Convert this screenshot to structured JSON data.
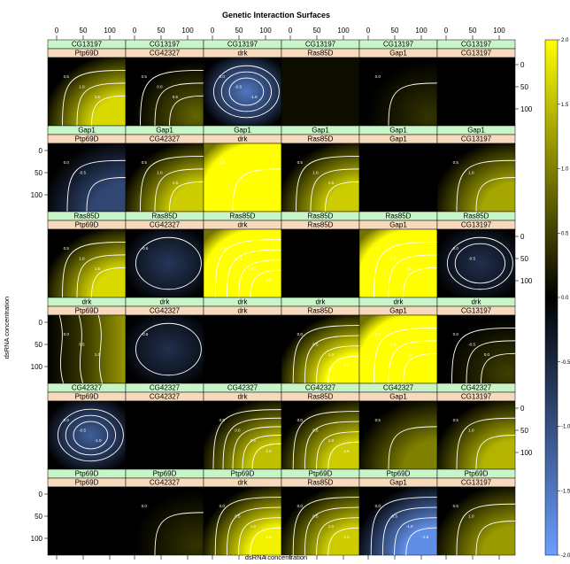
{
  "chart_data": {
    "type": "heatmap",
    "title": "Genetic Interaction Surfaces",
    "xlabel": "dsRNA concentration",
    "ylabel": "dsRNA concentration",
    "x_ticks": [
      "0",
      "50",
      "100"
    ],
    "y_ticks": [
      "0",
      "50",
      "100"
    ],
    "colorbar": {
      "ticks": [
        "2.0",
        "1.5",
        "1.0",
        "0.5",
        "0.0",
        "-0.5",
        "-1.0",
        "-1.5",
        "-2.0"
      ],
      "range": [
        -2.0,
        2.0
      ],
      "low_color": "#6b9eff",
      "mid_color": "#000000",
      "high_color": "#ffff00"
    },
    "rows": [
      {
        "gene": "CG13197",
        "panels": [
          {
            "top": "CG13197",
            "bottom": "Ptp69D",
            "pattern": "bottomRight",
            "strength": 1.7,
            "labels": [
              "0.5",
              "1.0",
              "1.5"
            ]
          },
          {
            "top": "CG13197",
            "bottom": "CG42327",
            "pattern": "mixedTopLeftNeg",
            "strength": 0.8,
            "labels": [
              "0.5",
              "0.0",
              "0.5"
            ]
          },
          {
            "top": "CG13197",
            "bottom": "drk",
            "pattern": "negBlob",
            "strength": -1.5,
            "labels": [
              "0.0",
              "-0.5",
              "-1.0"
            ]
          },
          {
            "top": "CG13197",
            "bottom": "Ras85D",
            "pattern": "flat",
            "strength": 0.1,
            "labels": []
          },
          {
            "top": "CG13197",
            "bottom": "Gap1",
            "pattern": "faintRight",
            "strength": 0.4,
            "labels": [
              "0.0"
            ]
          },
          {
            "top": "CG13197",
            "bottom": "CG13197",
            "pattern": "flat",
            "strength": 0.0,
            "labels": []
          }
        ]
      },
      {
        "gene": "Gap1",
        "panels": [
          {
            "top": "Gap1",
            "bottom": "Ptp69D",
            "pattern": "negBottomRight",
            "strength": -0.9,
            "labels": [
              "0.0",
              "-0.5"
            ]
          },
          {
            "top": "Gap1",
            "bottom": "CG42327",
            "pattern": "bottomRight",
            "strength": 1.6,
            "labels": [
              "0.5",
              "1.0",
              "1.5"
            ]
          },
          {
            "top": "Gap1",
            "bottom": "drk",
            "pattern": "full",
            "strength": 2.0,
            "labels": [
              "1.5"
            ]
          },
          {
            "top": "Gap1",
            "bottom": "Ras85D",
            "pattern": "bottomRight",
            "strength": 1.6,
            "labels": [
              "0.5",
              "1.0",
              "1.5"
            ]
          },
          {
            "top": "Gap1",
            "bottom": "Gap1",
            "pattern": "flat",
            "strength": 0.0,
            "labels": []
          },
          {
            "top": "Gap1",
            "bottom": "CG13197",
            "pattern": "bottomRight",
            "strength": 1.3,
            "labels": [
              "0.5",
              "1.0"
            ]
          }
        ]
      },
      {
        "gene": "Ras85D",
        "panels": [
          {
            "top": "Ras85D",
            "bottom": "Ptp69D",
            "pattern": "bottomRight",
            "strength": 1.7,
            "labels": [
              "0.5",
              "1.0",
              "1.5"
            ]
          },
          {
            "top": "Ras85D",
            "bottom": "CG42327",
            "pattern": "negCenter",
            "strength": -0.7,
            "labels": [
              "-0.5"
            ]
          },
          {
            "top": "Ras85D",
            "bottom": "drk",
            "pattern": "full",
            "strength": 2.0,
            "labels": [
              "-1.5",
              "-0.5",
              "0.5",
              "1.5"
            ]
          },
          {
            "top": "Ras85D",
            "bottom": "Ras85D",
            "pattern": "flat",
            "strength": 0.0,
            "labels": []
          },
          {
            "top": "Ras85D",
            "bottom": "Gap1",
            "pattern": "full",
            "strength": 2.0,
            "labels": [
              "0.5",
              "1.0",
              "1.5"
            ]
          },
          {
            "top": "Ras85D",
            "bottom": "CG13197",
            "pattern": "negCenter",
            "strength": -0.6,
            "labels": [
              "0.0",
              "-0.5"
            ]
          }
        ]
      },
      {
        "gene": "drk",
        "panels": [
          {
            "top": "drk",
            "bottom": "Ptp69D",
            "pattern": "rightBand",
            "strength": 1.2,
            "labels": [
              "0.0",
              "0.5",
              "1.0"
            ]
          },
          {
            "top": "drk",
            "bottom": "CG42327",
            "pattern": "negCenter",
            "strength": -0.6,
            "labels": [
              "-0.5"
            ]
          },
          {
            "top": "drk",
            "bottom": "drk",
            "pattern": "flat",
            "strength": 0.0,
            "labels": []
          },
          {
            "top": "drk",
            "bottom": "Ras85D",
            "pattern": "bottomRight",
            "strength": 2.0,
            "labels": [
              "0.0",
              "0.5",
              "1.0",
              "1.5"
            ]
          },
          {
            "top": "drk",
            "bottom": "Gap1",
            "pattern": "full",
            "strength": 2.0,
            "labels": [
              "0.5",
              "1.0",
              "1.5"
            ]
          },
          {
            "top": "drk",
            "bottom": "CG13197",
            "pattern": "faintRight",
            "strength": 0.5,
            "labels": [
              "0.0",
              "-0.5",
              "0.0"
            ]
          }
        ]
      },
      {
        "gene": "CG42327",
        "panels": [
          {
            "top": "CG42327",
            "bottom": "Ptp69D",
            "pattern": "negCenter",
            "strength": -1.2,
            "labels": [
              "0.0",
              "-0.5",
              "-1.0"
            ]
          },
          {
            "top": "CG42327",
            "bottom": "CG42327",
            "pattern": "flat",
            "strength": 0.0,
            "labels": []
          },
          {
            "top": "CG42327",
            "bottom": "drk",
            "pattern": "bottomRight",
            "strength": 1.5,
            "labels": [
              "0.5",
              "0.0",
              "0.5",
              "1.0",
              "1.5"
            ]
          },
          {
            "top": "CG42327",
            "bottom": "Ras85D",
            "pattern": "bottomRight",
            "strength": 1.6,
            "labels": [
              "0.0",
              "0.5",
              "1.0",
              "1.5"
            ]
          },
          {
            "top": "CG42327",
            "bottom": "Gap1",
            "pattern": "bottomRight",
            "strength": 1.0,
            "labels": [
              "0.5"
            ]
          },
          {
            "top": "CG42327",
            "bottom": "CG13197",
            "pattern": "bottomRight",
            "strength": 1.4,
            "labels": [
              "0.5",
              "1.0"
            ]
          }
        ]
      },
      {
        "gene": "Ptp69D",
        "panels": [
          {
            "top": "Ptp69D",
            "bottom": "Ptp69D",
            "pattern": "flat",
            "strength": 0.0,
            "labels": []
          },
          {
            "top": "Ptp69D",
            "bottom": "CG42327",
            "pattern": "faintRight",
            "strength": 0.4,
            "labels": [
              "0.0"
            ]
          },
          {
            "top": "Ptp69D",
            "bottom": "drk",
            "pattern": "bottomRight",
            "strength": 1.9,
            "labels": [
              "0.0",
              "0.5",
              "1.0",
              "1.5"
            ]
          },
          {
            "top": "Ptp69D",
            "bottom": "Ras85D",
            "pattern": "bottomRight",
            "strength": 1.6,
            "labels": [
              "0.0",
              "0.5",
              "1.0",
              "1.5"
            ]
          },
          {
            "top": "Ptp69D",
            "bottom": "Gap1",
            "pattern": "negBottomRight",
            "strength": -1.8,
            "labels": [
              "0.0",
              "-0.5",
              "-1.0",
              "-1.5"
            ]
          },
          {
            "top": "Ptp69D",
            "bottom": "CG13197",
            "pattern": "bottomRight",
            "strength": 1.2,
            "labels": [
              "0.5",
              "1.0"
            ]
          }
        ]
      }
    ]
  }
}
